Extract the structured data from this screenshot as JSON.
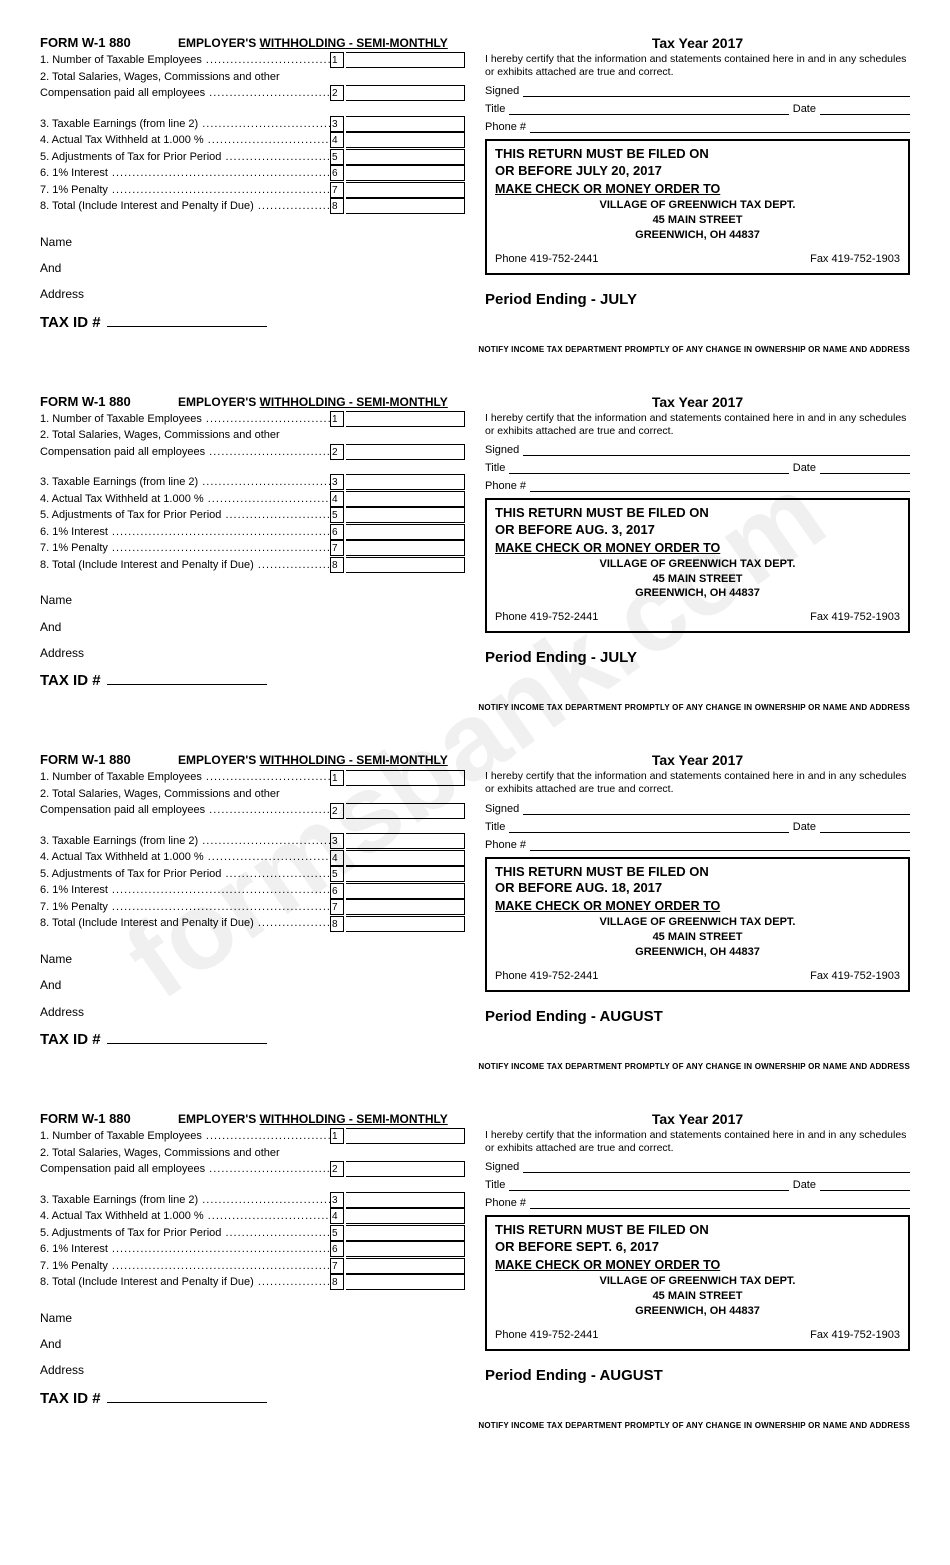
{
  "watermark": "formsbank.com",
  "common": {
    "form_code": "FORM W-1  880",
    "form_title_prefix": "EMPLOYER'S ",
    "form_title_underline": "WITHHOLDING - SEMI-MONTHLY",
    "lines": {
      "l1": "1. Number of Taxable Employees",
      "l2a": "2. Total Salaries, Wages, Commissions and other",
      "l2b": "    Compensation paid all employees",
      "l3": "3. Taxable Earnings (from line 2)",
      "l4": "4. Actual Tax Withheld at 1.000 %",
      "l5": "5. Adjustments of Tax for Prior Period",
      "l6": "6. 1% Interest",
      "l7": "7. 1% Penalty",
      "l8": "8. Total (Include Interest and Penalty if Due)"
    },
    "name": "Name",
    "and": "And",
    "address": "Address",
    "taxid": "TAX ID #",
    "tax_year": "Tax Year 2017",
    "certify": "I hereby certify that the information and statements contained here in and in any schedules or exhibits attached are true and correct.",
    "signed": "Signed",
    "title": "Title",
    "date": "Date",
    "phone": "Phone #",
    "filed_on": "THIS RETURN MUST BE FILED ON",
    "check_order": "MAKE CHECK OR MONEY ORDER TO",
    "dept": "VILLAGE OF GREENWICH TAX DEPT.",
    "street": "45 MAIN STREET",
    "city": "GREENWICH, OH 44837",
    "phone_num": "Phone 419-752-2441",
    "fax_num": "Fax 419-752-1903",
    "notify": "NOTIFY INCOME TAX DEPARTMENT PROMPTLY OF ANY CHANGE IN OWNERSHIP OR NAME AND ADDRESS"
  },
  "forms": {
    "f1": {
      "deadline": "OR BEFORE JULY 20, 2017",
      "period": "Period Ending - JULY"
    },
    "f2": {
      "deadline": "OR BEFORE AUG. 3, 2017",
      "period": "Period Ending - JULY"
    },
    "f3": {
      "deadline": "OR BEFORE AUG. 18, 2017",
      "period": "Period Ending - AUGUST"
    },
    "f4": {
      "deadline": "OR BEFORE SEPT. 6, 2017",
      "period": "Period Ending - AUGUST"
    }
  }
}
